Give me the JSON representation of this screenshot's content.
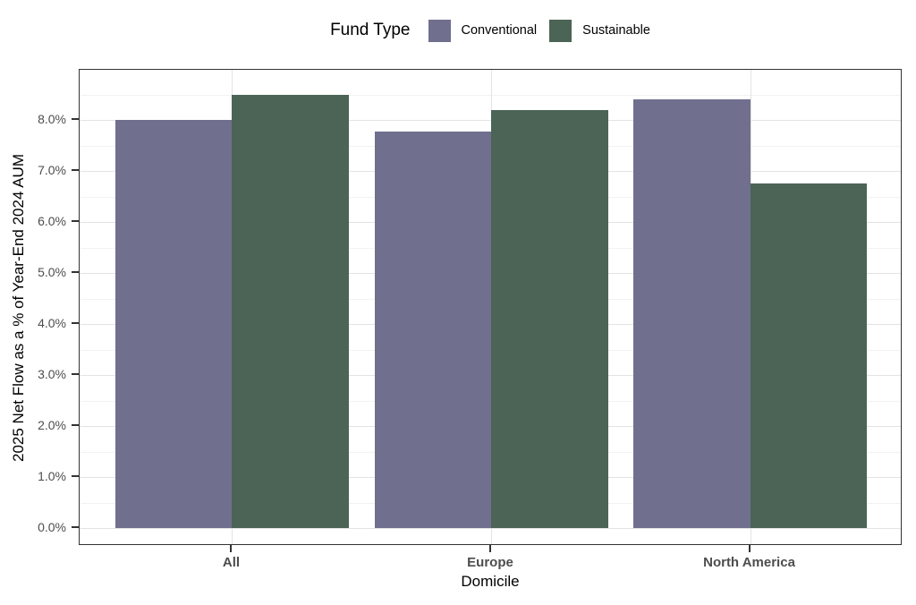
{
  "chart_data": {
    "type": "bar",
    "variant": "grouped",
    "legend": {
      "title": "Fund Type",
      "position": "top-center",
      "entries": [
        {
          "label": "Conventional",
          "color": "#706F8E"
        },
        {
          "label": "Sustainable",
          "color": "#4B6456"
        }
      ]
    },
    "categories": [
      "All",
      "Europe",
      "North America"
    ],
    "series": [
      {
        "name": "Conventional",
        "color": "#706F8E",
        "values": [
          8.0,
          7.78,
          8.4
        ]
      },
      {
        "name": "Sustainable",
        "color": "#4B6456",
        "values": [
          8.5,
          8.2,
          6.75
        ]
      }
    ],
    "xlabel": "Domicile",
    "ylabel": "2025 Net Flow as a % of Year-End 2024 AUM",
    "y_ticks": [
      {
        "value": 0,
        "label": "0.0%"
      },
      {
        "value": 1,
        "label": "1.0%"
      },
      {
        "value": 2,
        "label": "2.0%"
      },
      {
        "value": 3,
        "label": "3.0%"
      },
      {
        "value": 4,
        "label": "4.0%"
      },
      {
        "value": 5,
        "label": "5.0%"
      },
      {
        "value": 6,
        "label": "6.0%"
      },
      {
        "value": 7,
        "label": "7.0%"
      },
      {
        "value": 8,
        "label": "8.0%"
      }
    ],
    "ylim": [
      0,
      8.98
    ],
    "grid": {
      "horizontal": "major+minor",
      "vertical": "major",
      "major_color": "#E3E3E3",
      "minor_color": "#F2F2F2"
    },
    "panel_border_color": "#333333",
    "axis_text_color": "#4D4D4D"
  }
}
